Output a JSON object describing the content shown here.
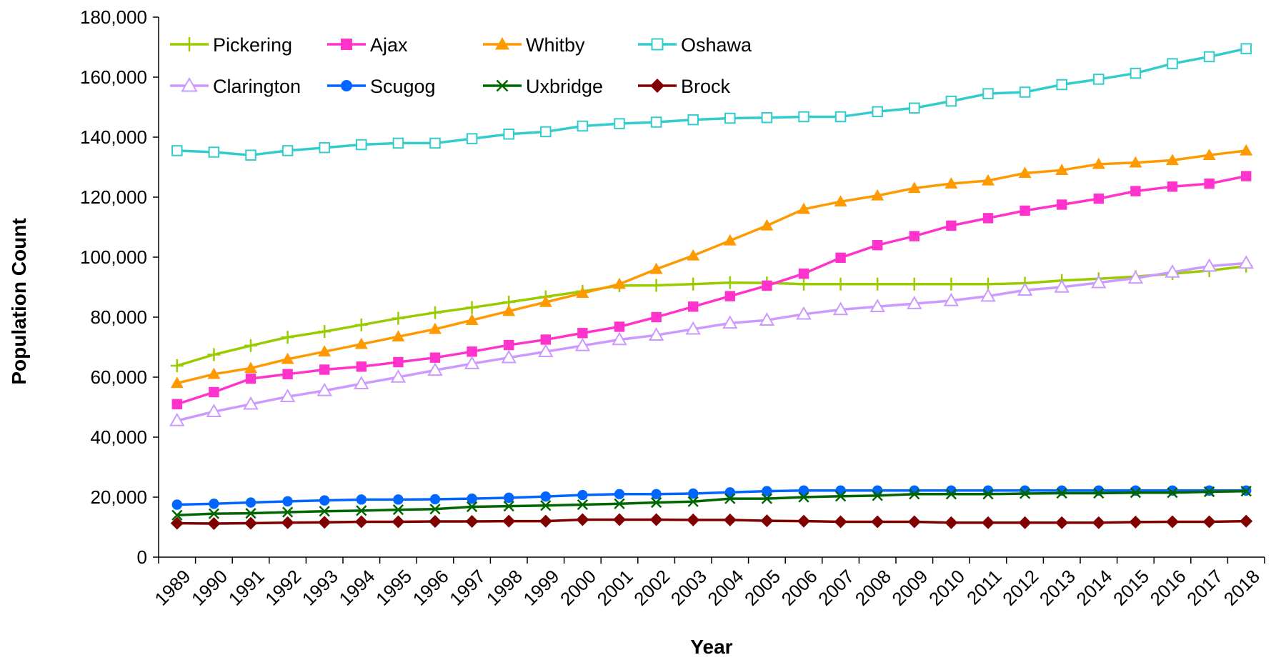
{
  "chart_data": {
    "type": "line",
    "title": "",
    "xlabel": "Year",
    "ylabel": "Population Count",
    "ylim": [
      0,
      180000
    ],
    "y_ticks": [
      0,
      20000,
      40000,
      60000,
      80000,
      100000,
      120000,
      140000,
      160000,
      180000
    ],
    "y_tick_labels": [
      "0",
      "20,000",
      "40,000",
      "60,000",
      "80,000",
      "100,000",
      "120,000",
      "140,000",
      "160,000",
      "180,000"
    ],
    "grid": false,
    "legend_position": "top-left",
    "x": [
      "1989",
      "1990",
      "1991",
      "1992",
      "1993",
      "1994",
      "1995",
      "1996",
      "1997",
      "1998",
      "1999",
      "2000",
      "2001",
      "2002",
      "2003",
      "2004",
      "2005",
      "2006",
      "2007",
      "2008",
      "2009",
      "2010",
      "2011",
      "2012",
      "2013",
      "2014",
      "2015",
      "2016",
      "2017",
      "2018"
    ],
    "series": [
      {
        "name": "Pickering",
        "color": "#99cc00",
        "marker": "plus",
        "values": [
          63800,
          67500,
          70500,
          73300,
          75200,
          77400,
          79600,
          81500,
          83200,
          85000,
          86800,
          88600,
          90500,
          90600,
          91000,
          91500,
          91400,
          91000,
          91000,
          91000,
          91000,
          91000,
          91000,
          91300,
          92200,
          92800,
          93500,
          94500,
          95500,
          97000
        ]
      },
      {
        "name": "Ajax",
        "color": "#ff33cc",
        "marker": "square",
        "values": [
          51000,
          55000,
          59500,
          61000,
          62500,
          63500,
          65000,
          66500,
          68500,
          70700,
          72500,
          74700,
          76800,
          80000,
          83500,
          87000,
          90500,
          94500,
          99800,
          104000,
          107000,
          110500,
          113000,
          115500,
          117500,
          119500,
          122000,
          123500,
          124500,
          127000
        ]
      },
      {
        "name": "Whitby",
        "color": "#ff9900",
        "marker": "triangle",
        "values": [
          58000,
          61000,
          63000,
          66000,
          68500,
          71000,
          73500,
          76000,
          79000,
          82000,
          85000,
          88000,
          91000,
          96000,
          100500,
          105500,
          110500,
          116000,
          118500,
          120500,
          123000,
          124500,
          125500,
          128000,
          129000,
          131000,
          131500,
          132300,
          134000,
          135500
        ]
      },
      {
        "name": "Oshawa",
        "color": "#33cccc",
        "marker": "square-open",
        "values": [
          135500,
          135000,
          134000,
          135500,
          136500,
          137500,
          138000,
          138000,
          139500,
          141000,
          141800,
          143700,
          144500,
          145000,
          145800,
          146300,
          146500,
          146800,
          146800,
          148500,
          149700,
          152000,
          154500,
          155000,
          157500,
          159300,
          161300,
          164500,
          166800,
          169500
        ]
      },
      {
        "name": "Clarington",
        "color": "#cc99ff",
        "marker": "triangle-open",
        "values": [
          45500,
          48500,
          51000,
          53500,
          55500,
          57800,
          60000,
          62300,
          64500,
          66500,
          68500,
          70500,
          72500,
          74000,
          76000,
          78000,
          79000,
          81000,
          82500,
          83500,
          84500,
          85500,
          87000,
          89000,
          90000,
          91500,
          93000,
          95000,
          97000,
          98000
        ]
      },
      {
        "name": "Scugog",
        "color": "#0066ff",
        "marker": "circle",
        "values": [
          17500,
          17800,
          18200,
          18600,
          18900,
          19200,
          19200,
          19300,
          19500,
          19800,
          20200,
          20700,
          21000,
          21000,
          21200,
          21600,
          22000,
          22200,
          22200,
          22200,
          22200,
          22200,
          22200,
          22200,
          22200,
          22200,
          22200,
          22200,
          22200,
          22200
        ]
      },
      {
        "name": "Uxbridge",
        "color": "#006600",
        "marker": "x",
        "values": [
          14000,
          14500,
          14600,
          15000,
          15300,
          15500,
          15800,
          16000,
          16800,
          17000,
          17200,
          17500,
          17800,
          18200,
          18500,
          19500,
          19500,
          20000,
          20300,
          20500,
          21000,
          21000,
          21000,
          21200,
          21300,
          21300,
          21500,
          21500,
          21800,
          22000
        ]
      },
      {
        "name": "Brock",
        "color": "#800000",
        "marker": "diamond",
        "values": [
          11300,
          11200,
          11300,
          11500,
          11600,
          11800,
          11800,
          11900,
          11900,
          12000,
          12000,
          12500,
          12500,
          12500,
          12400,
          12400,
          12100,
          12000,
          11800,
          11800,
          11800,
          11500,
          11500,
          11500,
          11500,
          11500,
          11700,
          11800,
          11800,
          12000
        ]
      }
    ]
  }
}
